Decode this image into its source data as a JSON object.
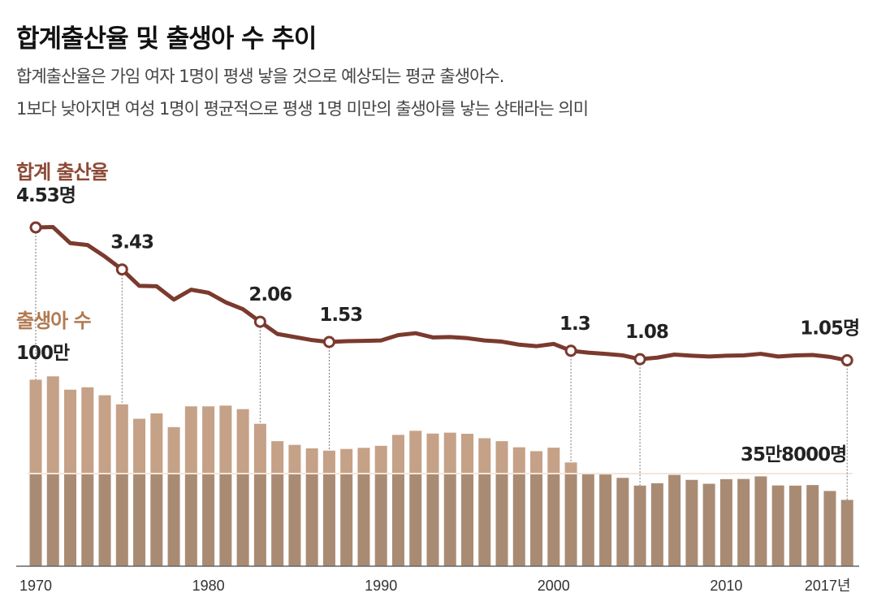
{
  "title": "합계출산율 및 출생아 수 추이",
  "subtitle_lines": [
    "합계출산율은 가임 여자 1명이 평생 낳을 것으로 예상되는 평균 출생아수.",
    "1보다 낮아지면 여성 1명이 평균적으로 평생 1명 미만의 출생아를 낳는 상태라는 의미"
  ],
  "colors": {
    "line": "#7b3a2e",
    "bar_upper": "#c5a187",
    "bar_lower": "#a98b74",
    "fertility_label": "#8c4a36",
    "births_label": "#b27a52"
  },
  "chart_data": [
    {
      "type": "line",
      "series_label": "합계 출산율",
      "unit": "명",
      "x": [
        1970,
        1971,
        1972,
        1973,
        1974,
        1975,
        1976,
        1977,
        1978,
        1979,
        1980,
        1981,
        1982,
        1983,
        1984,
        1985,
        1986,
        1987,
        1988,
        1989,
        1990,
        1991,
        1992,
        1993,
        1994,
        1995,
        1996,
        1997,
        1998,
        1999,
        2000,
        2001,
        2002,
        2003,
        2004,
        2005,
        2006,
        2007,
        2008,
        2009,
        2010,
        2011,
        2012,
        2013,
        2014,
        2015,
        2016,
        2017
      ],
      "values": [
        4.53,
        4.54,
        4.12,
        4.07,
        3.77,
        3.43,
        3.0,
        2.99,
        2.64,
        2.9,
        2.82,
        2.57,
        2.39,
        2.06,
        1.74,
        1.66,
        1.58,
        1.53,
        1.55,
        1.56,
        1.57,
        1.71,
        1.76,
        1.65,
        1.66,
        1.63,
        1.57,
        1.54,
        1.46,
        1.42,
        1.48,
        1.3,
        1.25,
        1.22,
        1.18,
        1.08,
        1.12,
        1.2,
        1.17,
        1.15,
        1.17,
        1.18,
        1.22,
        1.15,
        1.18,
        1.19,
        1.14,
        1.05
      ],
      "annotations": [
        {
          "year": 1970,
          "label": "4.53명"
        },
        {
          "year": 1975,
          "label": "3.43"
        },
        {
          "year": 1983,
          "label": "2.06"
        },
        {
          "year": 1987,
          "label": "1.53"
        },
        {
          "year": 2001,
          "label": "1.3"
        },
        {
          "year": 2005,
          "label": "1.08"
        },
        {
          "year": 2017,
          "label": "1.05명"
        }
      ]
    },
    {
      "type": "bar",
      "series_label": "출생아 수",
      "unit": "만명",
      "scale_label": "100만",
      "x": [
        1970,
        1971,
        1972,
        1973,
        1974,
        1975,
        1976,
        1977,
        1978,
        1979,
        1980,
        1981,
        1982,
        1983,
        1984,
        1985,
        1986,
        1987,
        1988,
        1989,
        1990,
        1991,
        1992,
        1993,
        1994,
        1995,
        1996,
        1997,
        1998,
        1999,
        2000,
        2001,
        2002,
        2003,
        2004,
        2005,
        2006,
        2007,
        2008,
        2009,
        2010,
        2011,
        2012,
        2013,
        2014,
        2015,
        2016,
        2017
      ],
      "values": [
        100.7,
        102.5,
        95.3,
        96.6,
        92.3,
        87.4,
        79.6,
        82.5,
        75.1,
        86.3,
        86.3,
        86.7,
        84.8,
        76.9,
        67.5,
        65.5,
        63.6,
        62.4,
        63.3,
        63.9,
        65.0,
        70.9,
        73.1,
        71.6,
        72.1,
        71.5,
        69.1,
        67.5,
        64.2,
        62.1,
        64.0,
        56.0,
        49.7,
        49.5,
        47.7,
        43.5,
        44.8,
        49.3,
        46.6,
        44.5,
        47.0,
        47.1,
        48.5,
        43.6,
        43.5,
        43.8,
        40.6,
        35.8
      ],
      "end_label": "35만8000명",
      "band_split": 50
    }
  ],
  "x_ticks": [
    {
      "year": 1970,
      "label": "1970"
    },
    {
      "year": 1980,
      "label": "1980"
    },
    {
      "year": 1990,
      "label": "1990"
    },
    {
      "year": 2000,
      "label": "2000"
    },
    {
      "year": 2010,
      "label": "2010"
    },
    {
      "year": 2017,
      "label": "2017년"
    }
  ]
}
